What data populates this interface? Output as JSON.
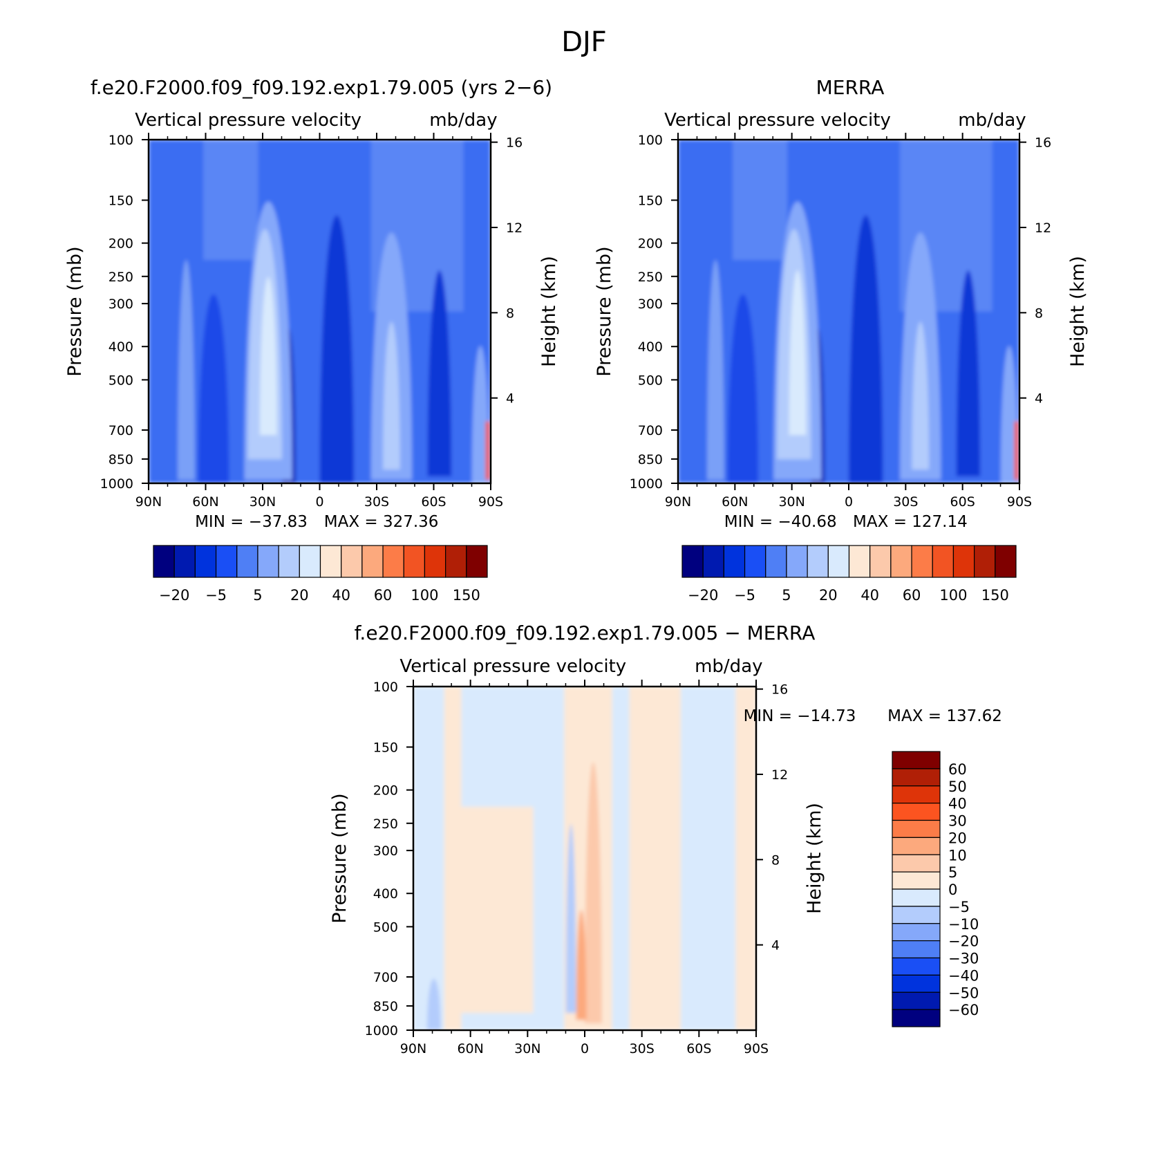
{
  "figure": {
    "title": "DJF"
  },
  "chart_data": [
    {
      "type": "heatmap",
      "title": "f.e20.F2000.f09_f09.192.exp1.79.005 (yrs 2−6)",
      "subtitle_left": "Vertical pressure velocity",
      "subtitle_right": "mb/day",
      "xlabel": "",
      "ylabel": "Pressure (mb)",
      "ylabel_right": "Height (km)",
      "x_ticks": [
        "90N",
        "60N",
        "30N",
        "0",
        "30S",
        "60S",
        "90S"
      ],
      "y_ticks": [
        "100",
        "150",
        "200",
        "250",
        "300",
        "400",
        "500",
        "700",
        "850",
        "1000"
      ],
      "y_right_ticks": [
        "16",
        "12",
        "8",
        "4"
      ],
      "ylim": [
        1000,
        100
      ],
      "y_scale": "log",
      "stats": {
        "min_text": "MIN = −37.83",
        "max_text": "MAX = 327.36",
        "min": -37.83,
        "max": 327.36
      },
      "colorbar": {
        "orientation": "horizontal",
        "labels": [
          "−20",
          "−5",
          "5",
          "20",
          "40",
          "60",
          "100",
          "150"
        ],
        "colors": [
          "#00007f",
          "#001ab0",
          "#0033dd",
          "#1a4ff5",
          "#4f7ff5",
          "#85a8fa",
          "#b3ccfc",
          "#d9eafd",
          "#fde8d5",
          "#fcc9ab",
          "#fca97d",
          "#fc7c48",
          "#f25423",
          "#de3409",
          "#b01f06",
          "#7f0000"
        ]
      }
    },
    {
      "type": "heatmap",
      "title": "MERRA",
      "subtitle_left": "Vertical pressure velocity",
      "subtitle_right": "mb/day",
      "xlabel": "",
      "ylabel": "Pressure (mb)",
      "ylabel_right": "Height (km)",
      "x_ticks": [
        "90N",
        "60N",
        "30N",
        "0",
        "30S",
        "60S",
        "90S"
      ],
      "y_ticks": [
        "100",
        "150",
        "200",
        "250",
        "300",
        "400",
        "500",
        "700",
        "850",
        "1000"
      ],
      "y_right_ticks": [
        "16",
        "12",
        "8",
        "4"
      ],
      "ylim": [
        1000,
        100
      ],
      "y_scale": "log",
      "stats": {
        "min_text": "MIN = −40.68",
        "max_text": "MAX = 127.14",
        "min": -40.68,
        "max": 127.14
      },
      "colorbar": {
        "orientation": "horizontal",
        "labels": [
          "−20",
          "−5",
          "5",
          "20",
          "40",
          "60",
          "100",
          "150"
        ],
        "colors": [
          "#00007f",
          "#001ab0",
          "#0033dd",
          "#1a4ff5",
          "#4f7ff5",
          "#85a8fa",
          "#b3ccfc",
          "#d9eafd",
          "#fde8d5",
          "#fcc9ab",
          "#fca97d",
          "#fc7c48",
          "#f25423",
          "#de3409",
          "#b01f06",
          "#7f0000"
        ]
      }
    },
    {
      "type": "heatmap",
      "title": "f.e20.F2000.f09_f09.192.exp1.79.005 − MERRA",
      "subtitle_left": "Vertical pressure velocity",
      "subtitle_right": "mb/day",
      "xlabel": "",
      "ylabel": "Pressure (mb)",
      "ylabel_right": "Height (km)",
      "x_ticks": [
        "90N",
        "60N",
        "30N",
        "0",
        "30S",
        "60S",
        "90S"
      ],
      "y_ticks": [
        "100",
        "150",
        "200",
        "250",
        "300",
        "400",
        "500",
        "700",
        "850",
        "1000"
      ],
      "y_right_ticks": [
        "16",
        "12",
        "8",
        "4"
      ],
      "ylim": [
        1000,
        100
      ],
      "y_scale": "log",
      "stats": {
        "min_text": "MIN = −14.73",
        "max_text": "MAX = 137.62",
        "min": -14.73,
        "max": 137.62
      },
      "colorbar": {
        "orientation": "vertical",
        "labels": [
          "60",
          "50",
          "40",
          "30",
          "20",
          "10",
          "5",
          "0",
          "−5",
          "−10",
          "−20",
          "−30",
          "−40",
          "−50",
          "−60"
        ],
        "colors": [
          "#7f0000",
          "#b01f06",
          "#de3409",
          "#fc5420",
          "#fc7c48",
          "#fca97d",
          "#fcc9ab",
          "#fde8d5",
          "#d9eafd",
          "#b3ccfc",
          "#85a8fa",
          "#4f7ff5",
          "#1a4ff5",
          "#0033dd",
          "#001ab0",
          "#00007f"
        ]
      }
    }
  ]
}
